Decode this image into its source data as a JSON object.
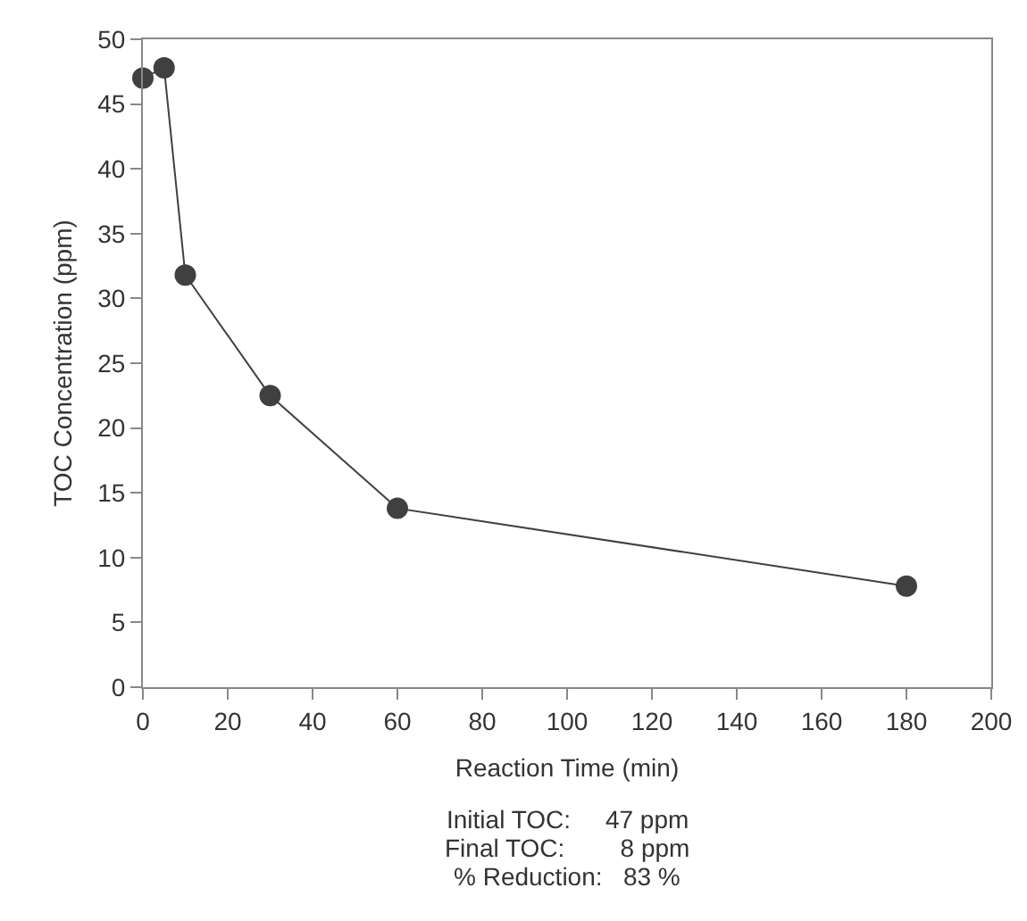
{
  "chart_data": {
    "type": "line",
    "xlabel": "Reaction Time (min)",
    "ylabel": "TOC Concentration (ppm)",
    "x": [
      0,
      5,
      10,
      30,
      60,
      180
    ],
    "series": [
      {
        "color": "#404040",
        "values": [
          47,
          47.8,
          31.8,
          22.5,
          13.8,
          7.8
        ]
      }
    ],
    "xlim": [
      0,
      200
    ],
    "xticks": [
      0,
      20,
      40,
      60,
      80,
      100,
      120,
      140,
      160,
      180,
      200
    ],
    "ylim": [
      0,
      50
    ],
    "yticks": [
      0,
      5,
      10,
      15,
      20,
      25,
      30,
      35,
      40,
      45,
      50
    ],
    "grid": false,
    "marker": "circle",
    "line_style": "solid",
    "annotations": [
      "Initial TOC:     47 ppm",
      "Final TOC:        8 ppm",
      "% Reduction:   83 %"
    ]
  }
}
